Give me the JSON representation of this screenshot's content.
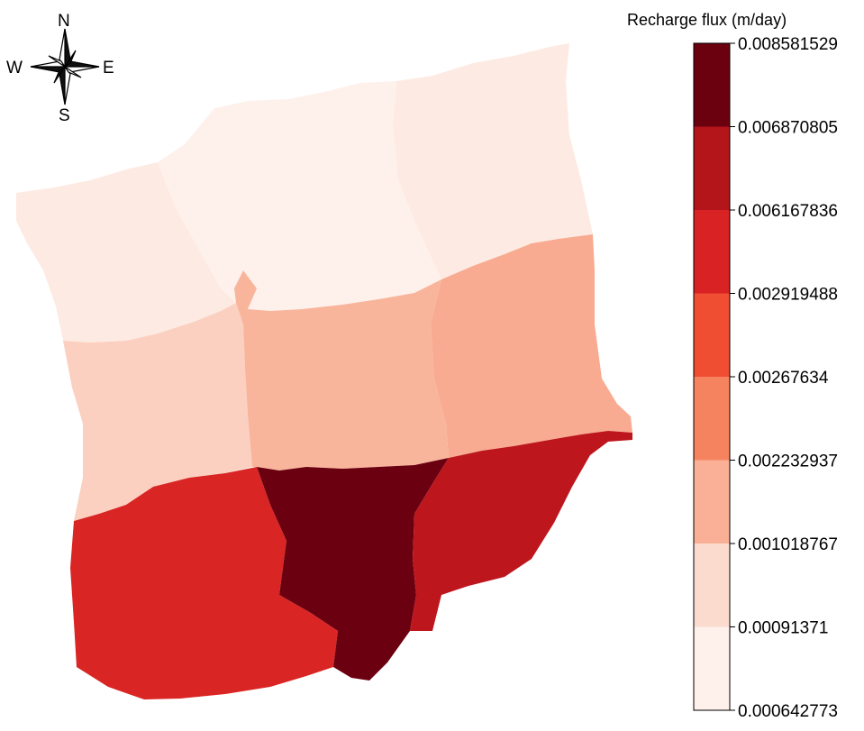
{
  "compass": {
    "north": "N",
    "south": "S",
    "east": "E",
    "west": "W"
  },
  "legend": {
    "title": "Recharge flux (m/day)",
    "ticks": [
      "0.008581529",
      "0.006870805",
      "0.006167836",
      "0.002919488",
      "0.00267634",
      "0.002232937",
      "0.001018767",
      "0.00091371",
      "0.000642773"
    ],
    "classes": [
      {
        "range": [
          "0.000642773",
          "0.00091371"
        ],
        "color": "#fef0ea"
      },
      {
        "range": [
          "0.00091371",
          "0.001018767"
        ],
        "color": "#fcdbcf"
      },
      {
        "range": [
          "0.001018767",
          "0.002232937"
        ],
        "color": "#f9b096"
      },
      {
        "range": [
          "0.002232937",
          "0.00267634"
        ],
        "color": "#f6835f"
      },
      {
        "range": [
          "0.00267634",
          "0.002919488"
        ],
        "color": "#f04e33"
      },
      {
        "range": [
          "0.002919488",
          "0.006167836"
        ],
        "color": "#d92223"
      },
      {
        "range": [
          "0.006167836",
          "0.006870805"
        ],
        "color": "#b3151b"
      },
      {
        "range": [
          "0.006870805",
          "0.008581529"
        ],
        "color": "#6b000f"
      }
    ]
  },
  "zones": [
    {
      "id": "north-west",
      "class_index": 0,
      "color": "#fdebe3"
    },
    {
      "id": "north-center",
      "class_index": 0,
      "color": "#fef1eb"
    },
    {
      "id": "north-east",
      "class_index": 0,
      "color": "#fdebe3"
    },
    {
      "id": "middle-west",
      "class_index": 1,
      "color": "#fbd0c0"
    },
    {
      "id": "middle-center",
      "class_index": 2,
      "color": "#f9b59c"
    },
    {
      "id": "middle-east",
      "class_index": 2,
      "color": "#f8ab90"
    },
    {
      "id": "south-west",
      "class_index": 5,
      "color": "#d92523"
    },
    {
      "id": "south-center",
      "class_index": 7,
      "color": "#6b0010"
    },
    {
      "id": "south-east",
      "class_index": 6,
      "color": "#bd161d"
    }
  ]
}
